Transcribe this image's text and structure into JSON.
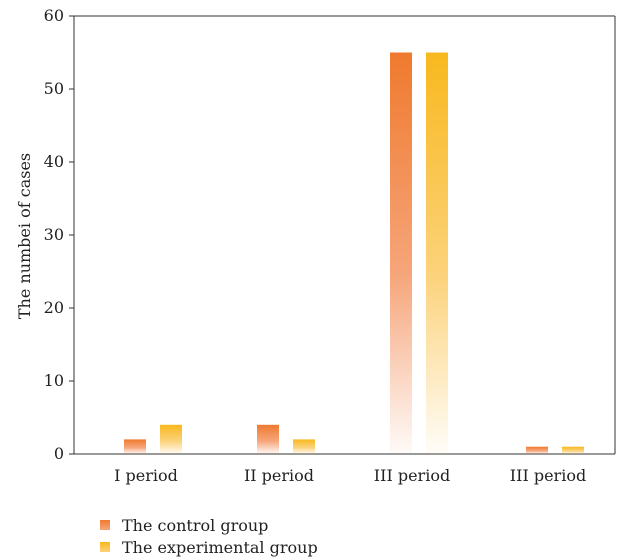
{
  "chart_data": {
    "type": "bar",
    "title": "",
    "xlabel": "",
    "ylabel": "The numbei of cases",
    "categories": [
      "I period",
      "II period",
      "III period",
      "III period"
    ],
    "ylim": [
      0,
      60
    ],
    "yticks": [
      0,
      10,
      20,
      30,
      40,
      50,
      60
    ],
    "grid": false,
    "legend_position": "bottom-left",
    "series": [
      {
        "name": "The control group",
        "values": [
          2,
          4,
          55,
          1
        ],
        "color": "#ef7a2e",
        "fade_color": "#f6a57a"
      },
      {
        "name": "The experimental group",
        "values": [
          4,
          2,
          55,
          1
        ],
        "color": "#f8b81e",
        "fade_color": "#fcd27a"
      }
    ]
  }
}
